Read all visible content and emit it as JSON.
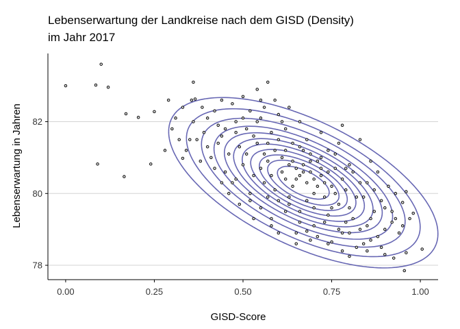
{
  "chart_data": {
    "type": "scatter",
    "title_lines": [
      "Lebenserwartung der Landkreise nach dem GISD (Density)",
      "im Jahr 2017"
    ],
    "xlabel": "GISD-Score",
    "ylabel": "Lebenserwartung in Jahren",
    "xlim": [
      -0.05,
      1.05
    ],
    "ylim": [
      77.6,
      83.9
    ],
    "x_ticks": [
      0.0,
      0.25,
      0.5,
      0.75,
      1.0
    ],
    "x_tick_labels": [
      "0.00",
      "0.25",
      "0.50",
      "0.75",
      "1.00"
    ],
    "y_ticks": [
      78,
      80,
      82
    ],
    "y_tick_labels": [
      "78",
      "80",
      "82"
    ],
    "grid": {
      "horizontal": true,
      "vertical": false
    },
    "colors": {
      "points_fill": "#cfcfcf",
      "points_stroke": "#000000",
      "contour": "#6666b3",
      "grid": "#d3d3d3"
    },
    "density": {
      "center": [
        0.67,
        80.3
      ],
      "sd_x": 0.16,
      "sd_y": 1.0,
      "correlation": -0.6,
      "levels": [
        0.06,
        0.12,
        0.2,
        0.29,
        0.38,
        0.47,
        0.56,
        0.65,
        0.74,
        0.82,
        0.9
      ]
    },
    "series": [
      {
        "points": [
          [
            0.0,
            83.0
          ],
          [
            0.1,
            83.6
          ],
          [
            0.085,
            83.02
          ],
          [
            0.12,
            82.96
          ],
          [
            0.17,
            82.22
          ],
          [
            0.205,
            82.12
          ],
          [
            0.09,
            80.82
          ],
          [
            0.165,
            80.47
          ],
          [
            0.24,
            80.82
          ],
          [
            0.25,
            82.28
          ],
          [
            0.29,
            82.6
          ],
          [
            0.355,
            82.6
          ],
          [
            0.365,
            82.63
          ],
          [
            0.36,
            83.1
          ],
          [
            0.385,
            82.4
          ],
          [
            0.54,
            82.9
          ],
          [
            0.55,
            82.6
          ],
          [
            0.3,
            81.8
          ],
          [
            0.32,
            81.5
          ],
          [
            0.28,
            81.2
          ],
          [
            0.33,
            80.98
          ],
          [
            0.35,
            81.5
          ],
          [
            0.44,
            81.6
          ],
          [
            0.57,
            83.1
          ],
          [
            0.95,
            79.75
          ],
          [
            0.925,
            78.2
          ],
          [
            0.96,
            78.35
          ],
          [
            0.955,
            77.85
          ],
          [
            1.005,
            78.45
          ],
          [
            0.96,
            80.05
          ],
          [
            0.98,
            79.45
          ],
          [
            0.9,
            79.0
          ],
          [
            0.93,
            79.3
          ],
          [
            0.8,
            78.25
          ],
          [
            0.75,
            78.65
          ],
          [
            0.65,
            78.6
          ],
          [
            0.68,
            78.95
          ],
          [
            0.83,
            81.5
          ],
          [
            0.78,
            81.9
          ],
          [
            0.72,
            81.7
          ],
          [
            0.9,
            78.3
          ],
          [
            0.86,
            78.7
          ],
          [
            0.63,
            82.4
          ],
          [
            0.6,
            82.2
          ],
          [
            0.42,
            82.3
          ],
          [
            0.45,
            80.6
          ],
          [
            0.47,
            80.3
          ],
          [
            0.52,
            80.0
          ],
          [
            0.55,
            79.6
          ],
          [
            0.58,
            79.3
          ],
          [
            0.62,
            79.5
          ],
          [
            0.7,
            79.1
          ],
          [
            0.74,
            79.4
          ],
          [
            0.77,
            79.7
          ],
          [
            0.82,
            79.9
          ],
          [
            0.85,
            80.3
          ],
          [
            0.88,
            80.6
          ],
          [
            0.4,
            81.3
          ],
          [
            0.43,
            81.9
          ],
          [
            0.48,
            82.0
          ],
          [
            0.51,
            81.8
          ],
          [
            0.38,
            80.9
          ],
          [
            0.49,
            79.7
          ],
          [
            0.53,
            79.3
          ],
          [
            0.66,
            81.3
          ],
          [
            0.69,
            81.1
          ],
          [
            0.59,
            81.2
          ],
          [
            0.61,
            80.6
          ],
          [
            0.64,
            80.2
          ],
          [
            0.72,
            80.5
          ],
          [
            0.75,
            80.2
          ],
          [
            0.79,
            80.1
          ],
          [
            0.71,
            80.9
          ],
          [
            0.57,
            80.9
          ],
          [
            0.63,
            79.9
          ],
          [
            0.68,
            79.8
          ],
          [
            0.81,
            79.3
          ],
          [
            0.87,
            79.5
          ],
          [
            0.92,
            79.2
          ],
          [
            0.46,
            81.1
          ],
          [
            0.54,
            81.4
          ],
          [
            0.58,
            81.7
          ],
          [
            0.67,
            80.6
          ],
          [
            0.73,
            79.9
          ],
          [
            0.78,
            78.9
          ],
          [
            0.84,
            78.6
          ],
          [
            0.89,
            79.8
          ],
          [
            0.93,
            80.0
          ],
          [
            0.5,
            80.8
          ],
          [
            0.56,
            80.3
          ],
          [
            0.6,
            79.8
          ],
          [
            0.65,
            80.4
          ],
          [
            0.7,
            80.0
          ],
          [
            0.76,
            80.7
          ],
          [
            0.8,
            80.8
          ],
          [
            0.83,
            80.3
          ],
          [
            0.62,
            81.8
          ],
          [
            0.66,
            82.0
          ],
          [
            0.55,
            82.1
          ],
          [
            0.41,
            81.0
          ],
          [
            0.39,
            81.7
          ],
          [
            0.36,
            82.0
          ],
          [
            0.34,
            81.2
          ],
          [
            0.31,
            82.1
          ],
          [
            0.47,
            82.5
          ],
          [
            0.52,
            82.3
          ],
          [
            0.59,
            82.6
          ],
          [
            0.68,
            81.5
          ],
          [
            0.74,
            81.2
          ],
          [
            0.77,
            81.4
          ],
          [
            0.86,
            80.9
          ],
          [
            0.91,
            80.2
          ],
          [
            0.88,
            78.8
          ],
          [
            0.82,
            78.5
          ],
          [
            0.79,
            79.2
          ],
          [
            0.71,
            78.8
          ],
          [
            0.66,
            79.2
          ],
          [
            0.6,
            78.9
          ],
          [
            0.57,
            79.9
          ],
          [
            0.53,
            80.5
          ],
          [
            0.49,
            81.3
          ],
          [
            0.44,
            82.6
          ],
          [
            0.5,
            82.7
          ],
          [
            0.63,
            80.8
          ],
          [
            0.64,
            80.9
          ],
          [
            0.65,
            80.7
          ],
          [
            0.66,
            80.5
          ],
          [
            0.67,
            80.8
          ],
          [
            0.68,
            80.3
          ],
          [
            0.69,
            80.6
          ],
          [
            0.7,
            80.4
          ],
          [
            0.71,
            80.2
          ],
          [
            0.72,
            80.7
          ],
          [
            0.73,
            80.3
          ],
          [
            0.74,
            80.6
          ],
          [
            0.61,
            81.0
          ],
          [
            0.62,
            80.4
          ],
          [
            0.64,
            81.4
          ],
          [
            0.58,
            80.5
          ],
          [
            0.56,
            81.1
          ],
          [
            0.59,
            80.1
          ],
          [
            0.75,
            79.6
          ],
          [
            0.76,
            80.0
          ],
          [
            0.78,
            80.4
          ],
          [
            0.8,
            79.6
          ],
          [
            0.81,
            80.6
          ],
          [
            0.84,
            79.9
          ],
          [
            0.85,
            79.1
          ],
          [
            0.87,
            80.1
          ],
          [
            0.46,
            80.0
          ],
          [
            0.48,
            81.7
          ],
          [
            0.51,
            81.1
          ],
          [
            0.53,
            81.6
          ],
          [
            0.55,
            80.7
          ],
          [
            0.57,
            81.4
          ],
          [
            0.6,
            81.5
          ],
          [
            0.62,
            81.2
          ],
          [
            0.67,
            81.2
          ],
          [
            0.69,
            80.9
          ],
          [
            0.72,
            81.0
          ],
          [
            0.76,
            81.1
          ],
          [
            0.79,
            80.7
          ],
          [
            0.63,
            79.7
          ],
          [
            0.66,
            79.5
          ],
          [
            0.7,
            79.6
          ],
          [
            0.73,
            79.2
          ],
          [
            0.77,
            79.0
          ],
          [
            0.8,
            78.9
          ],
          [
            0.83,
            79.0
          ],
          [
            0.86,
            79.3
          ],
          [
            0.9,
            79.6
          ],
          [
            0.43,
            81.4
          ],
          [
            0.45,
            81.8
          ],
          [
            0.37,
            81.5
          ],
          [
            0.4,
            82.1
          ],
          [
            0.33,
            82.4
          ],
          [
            0.5,
            82.1
          ],
          [
            0.54,
            82.0
          ],
          [
            0.56,
            82.4
          ],
          [
            0.61,
            82.0
          ],
          [
            0.58,
            79.1
          ],
          [
            0.52,
            79.8
          ],
          [
            0.48,
            80.4
          ],
          [
            0.44,
            80.3
          ],
          [
            0.42,
            80.7
          ],
          [
            0.65,
            78.9
          ],
          [
            0.69,
            78.7
          ],
          [
            0.74,
            78.6
          ],
          [
            0.78,
            78.4
          ],
          [
            0.85,
            78.4
          ],
          [
            0.89,
            78.5
          ],
          [
            0.94,
            78.9
          ],
          [
            0.92,
            79.5
          ],
          [
            0.95,
            79.1
          ],
          [
            0.97,
            79.3
          ]
        ]
      }
    ]
  }
}
